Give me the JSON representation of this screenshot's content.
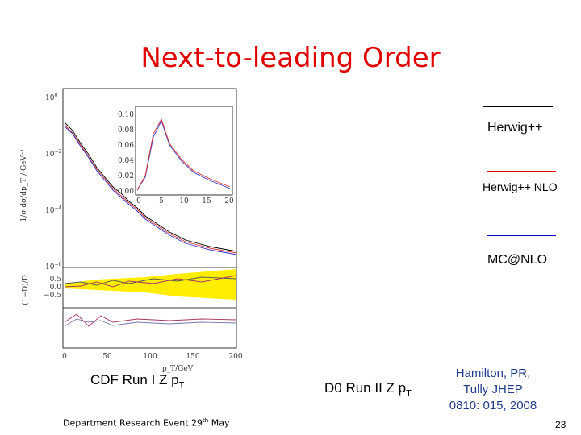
{
  "slide": {
    "title": "Next-to-leading Order",
    "legend": [
      "Herwig++",
      "Herwig++ NLO",
      "MC@NLO"
    ],
    "captions": [
      {
        "text": "CDF Run I Z p",
        "sub": "T"
      },
      {
        "text": "D0 Run II Z p",
        "sub": "T"
      }
    ],
    "reference": [
      "Hamilton, PR,",
      "Tully JHEP",
      "0810: 015, 2008"
    ],
    "footer": {
      "text": "Department Research Event 29",
      "sup": "th",
      "tail": " May"
    },
    "page_number": "23",
    "figure": {
      "main_y_ticks": [
        {
          "base": "10",
          "exp": "0"
        },
        {
          "base": "10",
          "exp": "−2"
        },
        {
          "base": "10",
          "exp": "−4"
        },
        {
          "base": "10",
          "exp": "−6"
        }
      ],
      "inset_y_ticks": [
        "0.10",
        "0.08",
        "0.06",
        "0.04",
        "0.02",
        "0.00"
      ],
      "inset_x_ticks": [
        "0",
        "5",
        "10",
        "15",
        "20"
      ],
      "ratio_y_ticks": [
        "0.5",
        "0.0",
        "−0.5"
      ],
      "x_ticks": [
        "0",
        "50",
        "100",
        "150",
        "200"
      ],
      "x_label": "p_T/GeV",
      "y_label": "1/σ dσ/dp_T / GeV⁻¹",
      "ratio_label": "(1−D)/D"
    }
  }
}
